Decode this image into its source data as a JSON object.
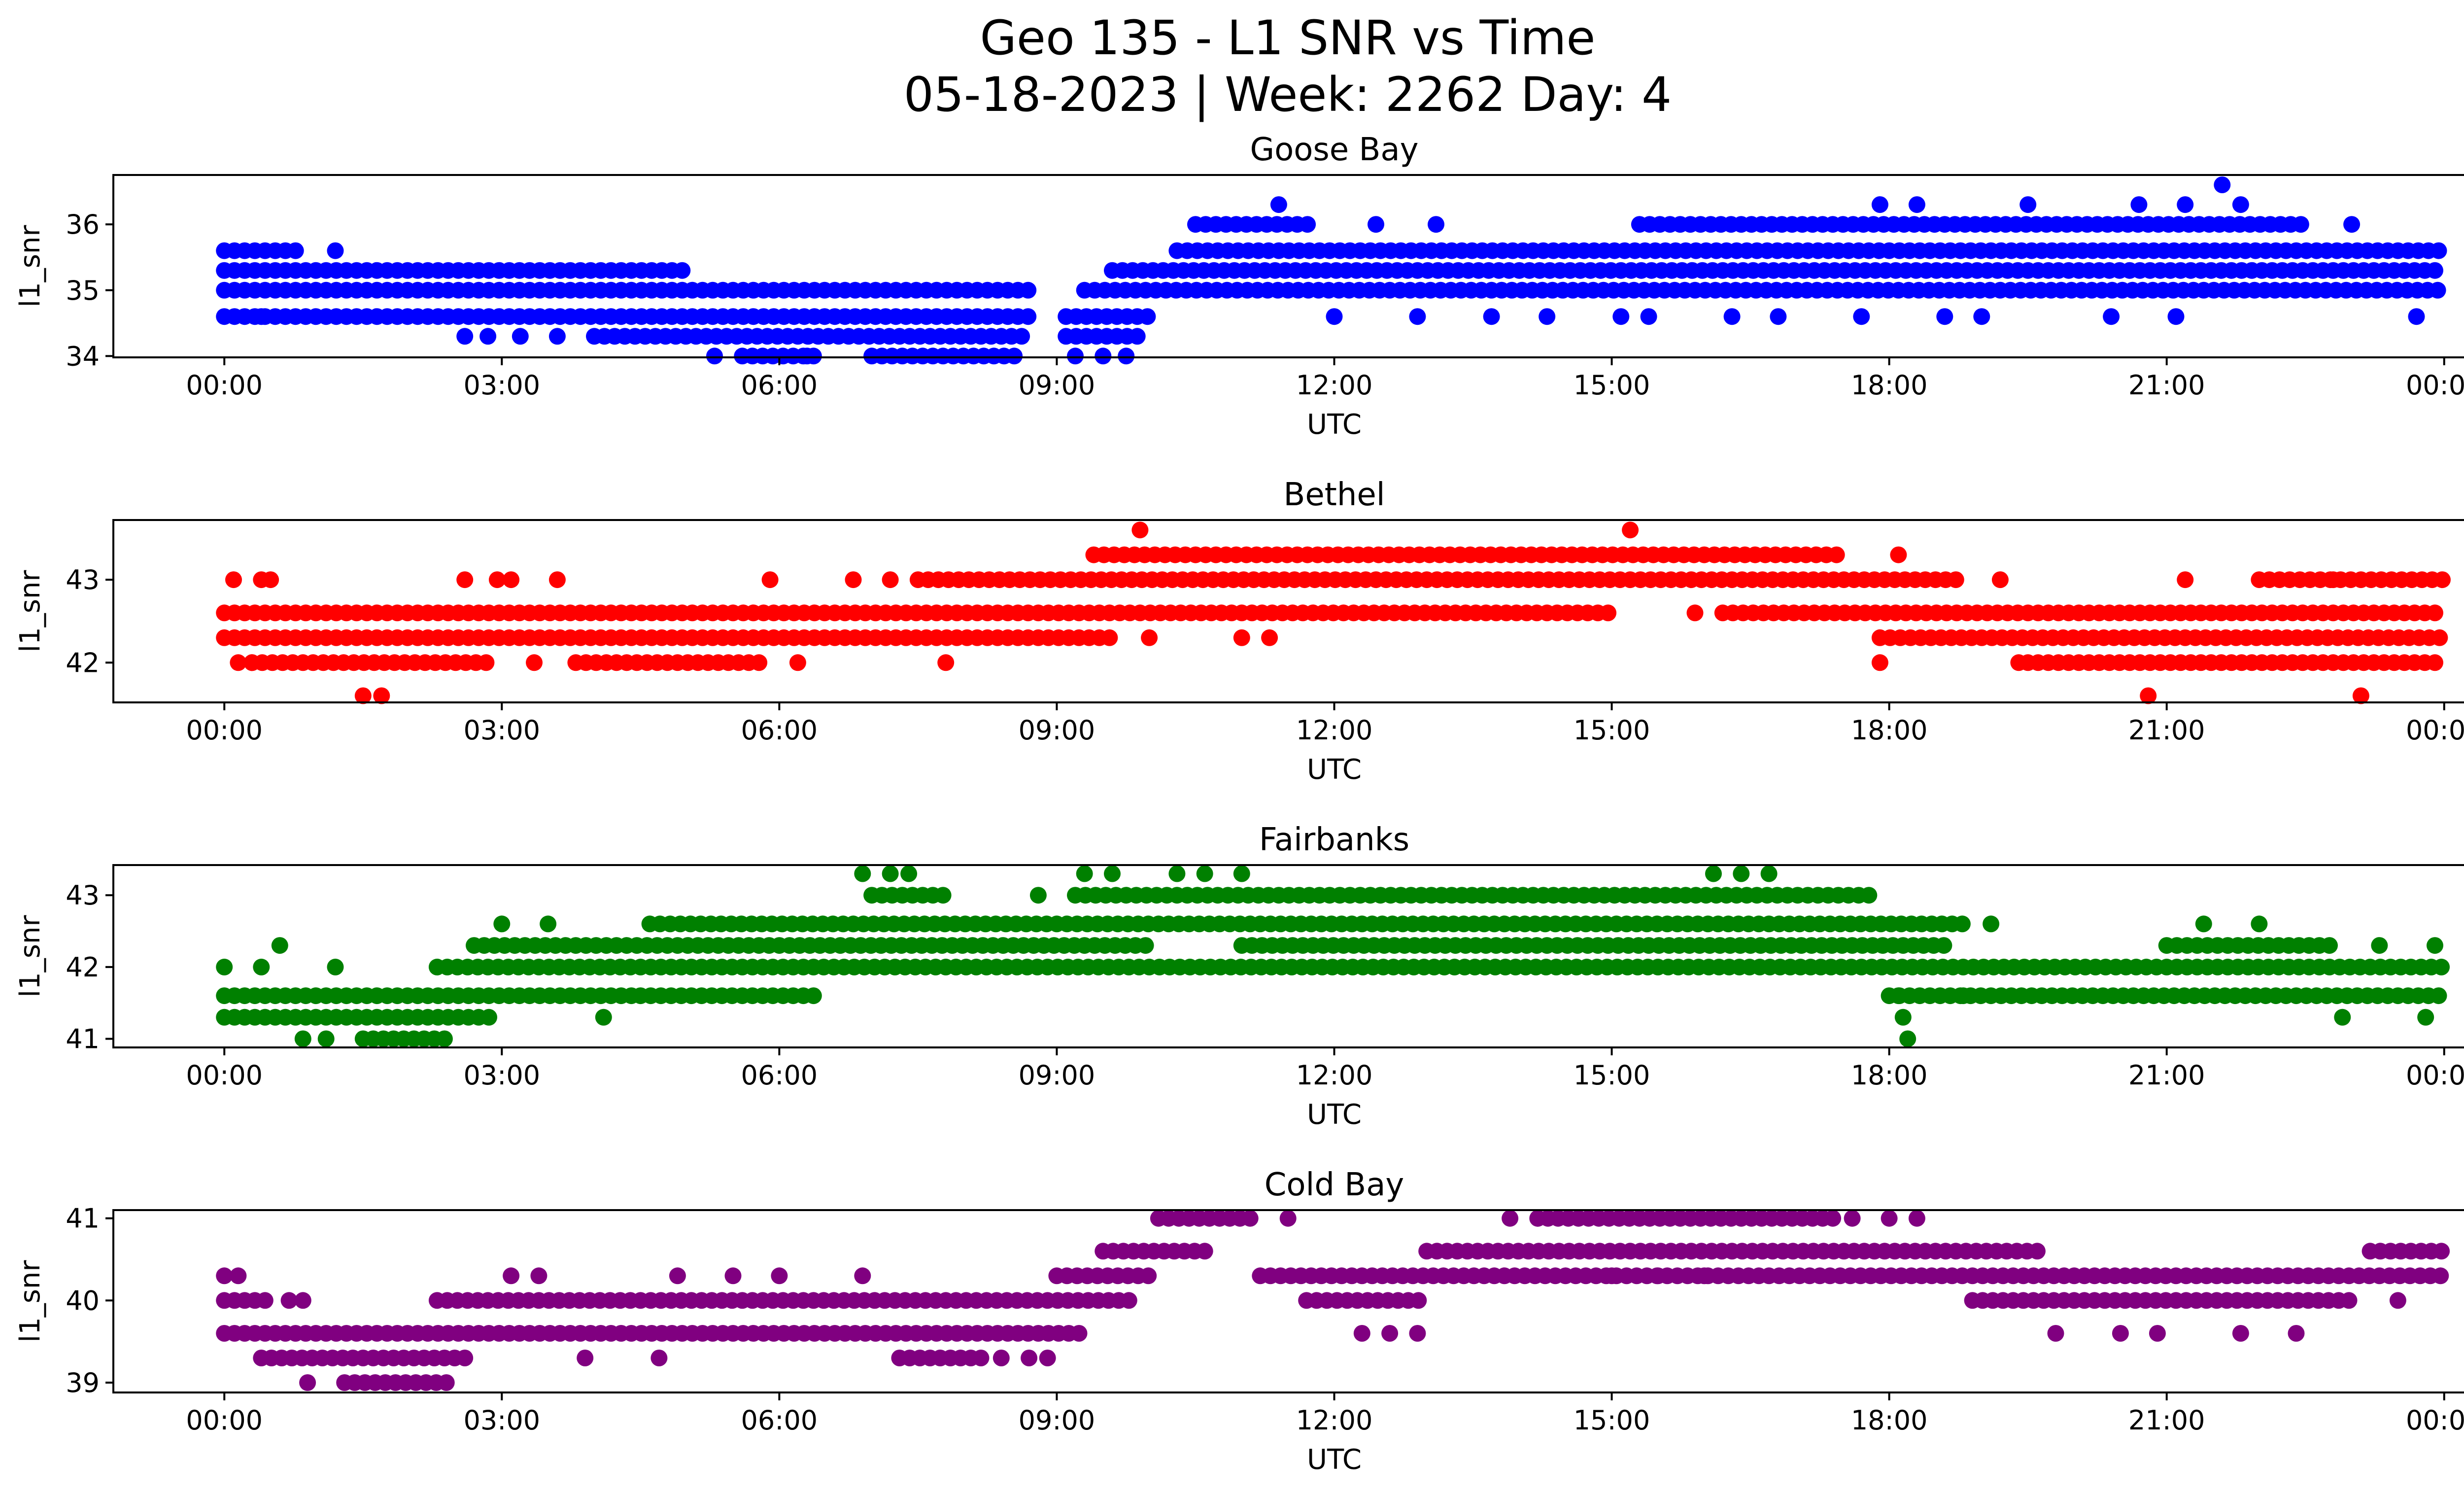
{
  "figure": {
    "title_line1": "Geo 135 - L1 SNR vs Time",
    "title_line2": "05-18-2023 | Week: 2262 Day: 4"
  },
  "chart_data": [
    {
      "type": "scatter",
      "title": "Goose Bay",
      "xlabel": "UTC",
      "ylabel": "l1_snr",
      "color": "#0000ff",
      "xlim_hours": [
        -1.2,
        25.2
      ],
      "ylim": [
        33.98,
        36.75
      ],
      "xtick_labels": [
        "00:00",
        "03:00",
        "06:00",
        "09:00",
        "12:00",
        "15:00",
        "18:00",
        "21:00",
        "00:00"
      ],
      "xtick_hours": [
        0,
        3,
        6,
        9,
        12,
        15,
        18,
        21,
        24
      ],
      "yticks": [
        34,
        35,
        36
      ],
      "bands": [
        {
          "y": 35.0,
          "segments": [
            [
              0.0,
              8.7
            ],
            [
              9.3,
              24.0
            ]
          ]
        },
        {
          "y": 35.3,
          "segments": [
            [
              0.0,
              5.0
            ],
            [
              9.6,
              24.0
            ]
          ]
        },
        {
          "y": 35.6,
          "segments": [
            [
              0.0,
              0.8
            ],
            [
              10.3,
              24.0
            ]
          ]
        },
        {
          "y": 34.6,
          "segments": [
            [
              0.0,
              8.7
            ],
            [
              9.1,
              10.0
            ]
          ]
        },
        {
          "y": 34.3,
          "segments": [
            [
              4.0,
              8.7
            ],
            [
              9.1,
              9.9
            ]
          ]
        },
        {
          "y": 36.0,
          "segments": [
            [
              10.5,
              11.8
            ],
            [
              15.3,
              22.5
            ]
          ]
        },
        {
          "y": 34.0,
          "segments": [
            [
              5.6,
              6.4
            ],
            [
              7.0,
              8.6
            ]
          ]
        }
      ],
      "points": [
        {
          "x": 0.4,
          "y": 34.6
        },
        {
          "x": 1.2,
          "y": 35.6
        },
        {
          "x": 2.6,
          "y": 34.3
        },
        {
          "x": 2.85,
          "y": 34.3
        },
        {
          "x": 3.2,
          "y": 34.3
        },
        {
          "x": 3.6,
          "y": 34.3
        },
        {
          "x": 5.3,
          "y": 34.0
        },
        {
          "x": 6.3,
          "y": 34.0
        },
        {
          "x": 9.2,
          "y": 34.0
        },
        {
          "x": 9.5,
          "y": 34.0
        },
        {
          "x": 9.75,
          "y": 34.0
        },
        {
          "x": 11.4,
          "y": 36.3
        },
        {
          "x": 12.0,
          "y": 34.6
        },
        {
          "x": 12.45,
          "y": 36.0
        },
        {
          "x": 12.9,
          "y": 34.6
        },
        {
          "x": 13.1,
          "y": 36.0
        },
        {
          "x": 13.7,
          "y": 34.6
        },
        {
          "x": 14.3,
          "y": 34.6
        },
        {
          "x": 15.1,
          "y": 34.6
        },
        {
          "x": 15.4,
          "y": 34.6
        },
        {
          "x": 16.3,
          "y": 34.6
        },
        {
          "x": 16.8,
          "y": 34.6
        },
        {
          "x": 17.7,
          "y": 34.6
        },
        {
          "x": 17.9,
          "y": 36.3
        },
        {
          "x": 18.3,
          "y": 36.3
        },
        {
          "x": 18.6,
          "y": 34.6
        },
        {
          "x": 19.0,
          "y": 34.6
        },
        {
          "x": 19.5,
          "y": 36.3
        },
        {
          "x": 20.4,
          "y": 34.6
        },
        {
          "x": 20.7,
          "y": 36.3
        },
        {
          "x": 21.1,
          "y": 34.6
        },
        {
          "x": 21.2,
          "y": 36.3
        },
        {
          "x": 21.6,
          "y": 36.6
        },
        {
          "x": 21.8,
          "y": 36.3
        },
        {
          "x": 23.0,
          "y": 36.0
        },
        {
          "x": 23.7,
          "y": 34.6
        }
      ]
    },
    {
      "type": "scatter",
      "title": "Bethel",
      "xlabel": "UTC",
      "ylabel": "l1_snr",
      "color": "#ff0000",
      "xlim_hours": [
        -1.2,
        25.2
      ],
      "ylim": [
        41.52,
        43.72
      ],
      "xtick_labels": [
        "00:00",
        "03:00",
        "06:00",
        "09:00",
        "12:00",
        "15:00",
        "18:00",
        "21:00",
        "00:00"
      ],
      "xtick_hours": [
        0,
        3,
        6,
        9,
        12,
        15,
        18,
        21,
        24
      ],
      "yticks": [
        42,
        43
      ],
      "bands": [
        {
          "y": 42.3,
          "segments": [
            [
              0.0,
              9.6
            ],
            [
              17.9,
              24.0
            ]
          ]
        },
        {
          "y": 42.6,
          "segments": [
            [
              0.0,
              15.0
            ],
            [
              16.2,
              24.0
            ]
          ]
        },
        {
          "y": 43.0,
          "segments": [
            [
              7.5,
              18.8
            ],
            [
              22.0,
              24.0
            ]
          ]
        },
        {
          "y": 43.3,
          "segments": [
            [
              9.4,
              17.5
            ]
          ]
        },
        {
          "y": 42.0,
          "segments": [
            [
              0.3,
              2.9
            ],
            [
              3.8,
              5.8
            ],
            [
              19.5,
              24.0
            ]
          ]
        }
      ],
      "points": [
        {
          "x": 0.1,
          "y": 43.0
        },
        {
          "x": 0.15,
          "y": 42.0
        },
        {
          "x": 0.3,
          "y": 42.0
        },
        {
          "x": 0.4,
          "y": 43.0
        },
        {
          "x": 0.5,
          "y": 43.0
        },
        {
          "x": 1.5,
          "y": 41.6
        },
        {
          "x": 1.7,
          "y": 41.6
        },
        {
          "x": 2.6,
          "y": 43.0
        },
        {
          "x": 2.95,
          "y": 43.0
        },
        {
          "x": 3.1,
          "y": 43.0
        },
        {
          "x": 3.35,
          "y": 42.0
        },
        {
          "x": 3.6,
          "y": 43.0
        },
        {
          "x": 5.9,
          "y": 43.0
        },
        {
          "x": 6.2,
          "y": 42.0
        },
        {
          "x": 6.8,
          "y": 43.0
        },
        {
          "x": 7.2,
          "y": 43.0
        },
        {
          "x": 7.8,
          "y": 42.0
        },
        {
          "x": 9.9,
          "y": 43.6
        },
        {
          "x": 10.0,
          "y": 42.3
        },
        {
          "x": 11.0,
          "y": 42.3
        },
        {
          "x": 11.3,
          "y": 42.3
        },
        {
          "x": 15.2,
          "y": 43.6
        },
        {
          "x": 15.9,
          "y": 42.6
        },
        {
          "x": 17.9,
          "y": 42.0
        },
        {
          "x": 18.1,
          "y": 43.3
        },
        {
          "x": 19.2,
          "y": 43.0
        },
        {
          "x": 19.4,
          "y": 42.0
        },
        {
          "x": 20.8,
          "y": 41.6
        },
        {
          "x": 21.2,
          "y": 43.0
        },
        {
          "x": 22.8,
          "y": 43.0
        },
        {
          "x": 23.1,
          "y": 41.6
        }
      ]
    },
    {
      "type": "scatter",
      "title": "Fairbanks",
      "xlabel": "UTC",
      "ylabel": "l1_snr",
      "color": "#008000",
      "xlim_hours": [
        -1.2,
        25.2
      ],
      "ylim": [
        40.88,
        43.42
      ],
      "xtick_labels": [
        "00:00",
        "03:00",
        "06:00",
        "09:00",
        "12:00",
        "15:00",
        "18:00",
        "21:00",
        "00:00"
      ],
      "xtick_hours": [
        0,
        3,
        6,
        9,
        12,
        15,
        18,
        21,
        24
      ],
      "yticks": [
        41,
        42,
        43
      ],
      "bands": [
        {
          "y": 41.6,
          "segments": [
            [
              0.0,
              4.5
            ],
            [
              18.0,
              24.0
            ],
            [
              4.5,
              6.4
            ]
          ]
        },
        {
          "y": 42.0,
          "segments": [
            [
              2.3,
              24.0
            ]
          ]
        },
        {
          "y": 42.3,
          "segments": [
            [
              2.7,
              10.0
            ],
            [
              11.0,
              18.6
            ],
            [
              21.0,
              22.8
            ]
          ]
        },
        {
          "y": 42.6,
          "segments": [
            [
              4.6,
              18.8
            ]
          ]
        },
        {
          "y": 41.3,
          "segments": [
            [
              0.0,
              2.9
            ]
          ]
        },
        {
          "y": 43.0,
          "segments": [
            [
              7.0,
              7.8
            ],
            [
              9.2,
              17.8
            ]
          ]
        },
        {
          "y": 41.0,
          "segments": [
            [
              1.5,
              2.4
            ]
          ]
        }
      ],
      "points": [
        {
          "x": 0.0,
          "y": 42.0
        },
        {
          "x": 0.4,
          "y": 42.0
        },
        {
          "x": 0.6,
          "y": 42.3
        },
        {
          "x": 0.85,
          "y": 41.0
        },
        {
          "x": 1.1,
          "y": 41.0
        },
        {
          "x": 1.2,
          "y": 42.0
        },
        {
          "x": 3.0,
          "y": 42.6
        },
        {
          "x": 3.5,
          "y": 42.6
        },
        {
          "x": 4.1,
          "y": 41.3
        },
        {
          "x": 6.9,
          "y": 43.3
        },
        {
          "x": 7.2,
          "y": 43.3
        },
        {
          "x": 7.4,
          "y": 43.3
        },
        {
          "x": 8.8,
          "y": 43.0
        },
        {
          "x": 9.3,
          "y": 43.3
        },
        {
          "x": 9.6,
          "y": 43.3
        },
        {
          "x": 10.3,
          "y": 43.3
        },
        {
          "x": 10.6,
          "y": 43.3
        },
        {
          "x": 11.0,
          "y": 43.3
        },
        {
          "x": 16.1,
          "y": 43.3
        },
        {
          "x": 16.4,
          "y": 43.3
        },
        {
          "x": 16.7,
          "y": 43.3
        },
        {
          "x": 18.1,
          "y": 41.6
        },
        {
          "x": 18.15,
          "y": 41.3
        },
        {
          "x": 18.2,
          "y": 41.0
        },
        {
          "x": 18.8,
          "y": 41.6
        },
        {
          "x": 19.1,
          "y": 42.6
        },
        {
          "x": 21.4,
          "y": 42.6
        },
        {
          "x": 22.0,
          "y": 42.6
        },
        {
          "x": 22.9,
          "y": 41.3
        },
        {
          "x": 23.3,
          "y": 42.3
        },
        {
          "x": 23.8,
          "y": 41.3
        },
        {
          "x": 23.9,
          "y": 42.3
        }
      ]
    },
    {
      "type": "scatter",
      "title": "Cold Bay",
      "xlabel": "UTC",
      "ylabel": "l1_snr",
      "color": "#800080",
      "xlim_hours": [
        -1.2,
        25.2
      ],
      "ylim": [
        38.88,
        41.1
      ],
      "xtick_labels": [
        "00:00",
        "03:00",
        "06:00",
        "09:00",
        "12:00",
        "15:00",
        "18:00",
        "21:00",
        "00:00"
      ],
      "xtick_hours": [
        0,
        3,
        6,
        9,
        12,
        15,
        18,
        21,
        24
      ],
      "yticks": [
        39,
        40,
        41
      ],
      "bands": [
        {
          "y": 39.6,
          "segments": [
            [
              0.0,
              9.3
            ]
          ]
        },
        {
          "y": 40.0,
          "segments": [
            [
              2.3,
              9.8
            ],
            [
              18.9,
              23.0
            ]
          ]
        },
        {
          "y": 40.3,
          "segments": [
            [
              9.0,
              10.0
            ],
            [
              11.2,
              24.0
            ]
          ]
        },
        {
          "y": 40.6,
          "segments": [
            [
              9.5,
              10.7
            ],
            [
              13.0,
              19.7
            ],
            [
              23.2,
              24.0
            ]
          ]
        },
        {
          "y": 41.0,
          "segments": [
            [
              10.1,
              11.1
            ],
            [
              14.2,
              17.4
            ]
          ]
        },
        {
          "y": 39.3,
          "segments": [
            [
              0.4,
              2.7
            ],
            [
              7.3,
              8.2
            ]
          ]
        },
        {
          "y": 40.0,
          "segments": [
            [
              0.0,
              0.5
            ],
            [
              11.7,
              13.0
            ]
          ]
        },
        {
          "y": 39.0,
          "segments": [
            [
              1.3,
              2.3
            ]
          ]
        }
      ],
      "points": [
        {
          "x": 0.0,
          "y": 40.3
        },
        {
          "x": 0.15,
          "y": 40.3
        },
        {
          "x": 0.7,
          "y": 40.0
        },
        {
          "x": 0.9,
          "y": 39.0
        },
        {
          "x": 0.85,
          "y": 40.0
        },
        {
          "x": 2.4,
          "y": 39.0
        },
        {
          "x": 3.1,
          "y": 40.3
        },
        {
          "x": 3.4,
          "y": 40.3
        },
        {
          "x": 3.9,
          "y": 39.3
        },
        {
          "x": 4.7,
          "y": 39.3
        },
        {
          "x": 4.9,
          "y": 40.3
        },
        {
          "x": 5.5,
          "y": 40.3
        },
        {
          "x": 6.0,
          "y": 40.3
        },
        {
          "x": 6.9,
          "y": 40.3
        },
        {
          "x": 8.4,
          "y": 39.3
        },
        {
          "x": 8.7,
          "y": 39.3
        },
        {
          "x": 8.9,
          "y": 39.3
        },
        {
          "x": 11.5,
          "y": 41.0
        },
        {
          "x": 12.3,
          "y": 39.6
        },
        {
          "x": 12.6,
          "y": 39.6
        },
        {
          "x": 12.9,
          "y": 39.6
        },
        {
          "x": 13.9,
          "y": 41.0
        },
        {
          "x": 14.2,
          "y": 41.0
        },
        {
          "x": 15.0,
          "y": 40.3
        },
        {
          "x": 15.5,
          "y": 40.3
        },
        {
          "x": 16.0,
          "y": 40.3
        },
        {
          "x": 17.6,
          "y": 41.0
        },
        {
          "x": 18.0,
          "y": 41.0
        },
        {
          "x": 18.3,
          "y": 41.0
        },
        {
          "x": 19.8,
          "y": 39.6
        },
        {
          "x": 20.5,
          "y": 39.6
        },
        {
          "x": 20.9,
          "y": 39.6
        },
        {
          "x": 21.8,
          "y": 39.6
        },
        {
          "x": 22.4,
          "y": 39.6
        },
        {
          "x": 23.5,
          "y": 40.0
        }
      ]
    }
  ]
}
